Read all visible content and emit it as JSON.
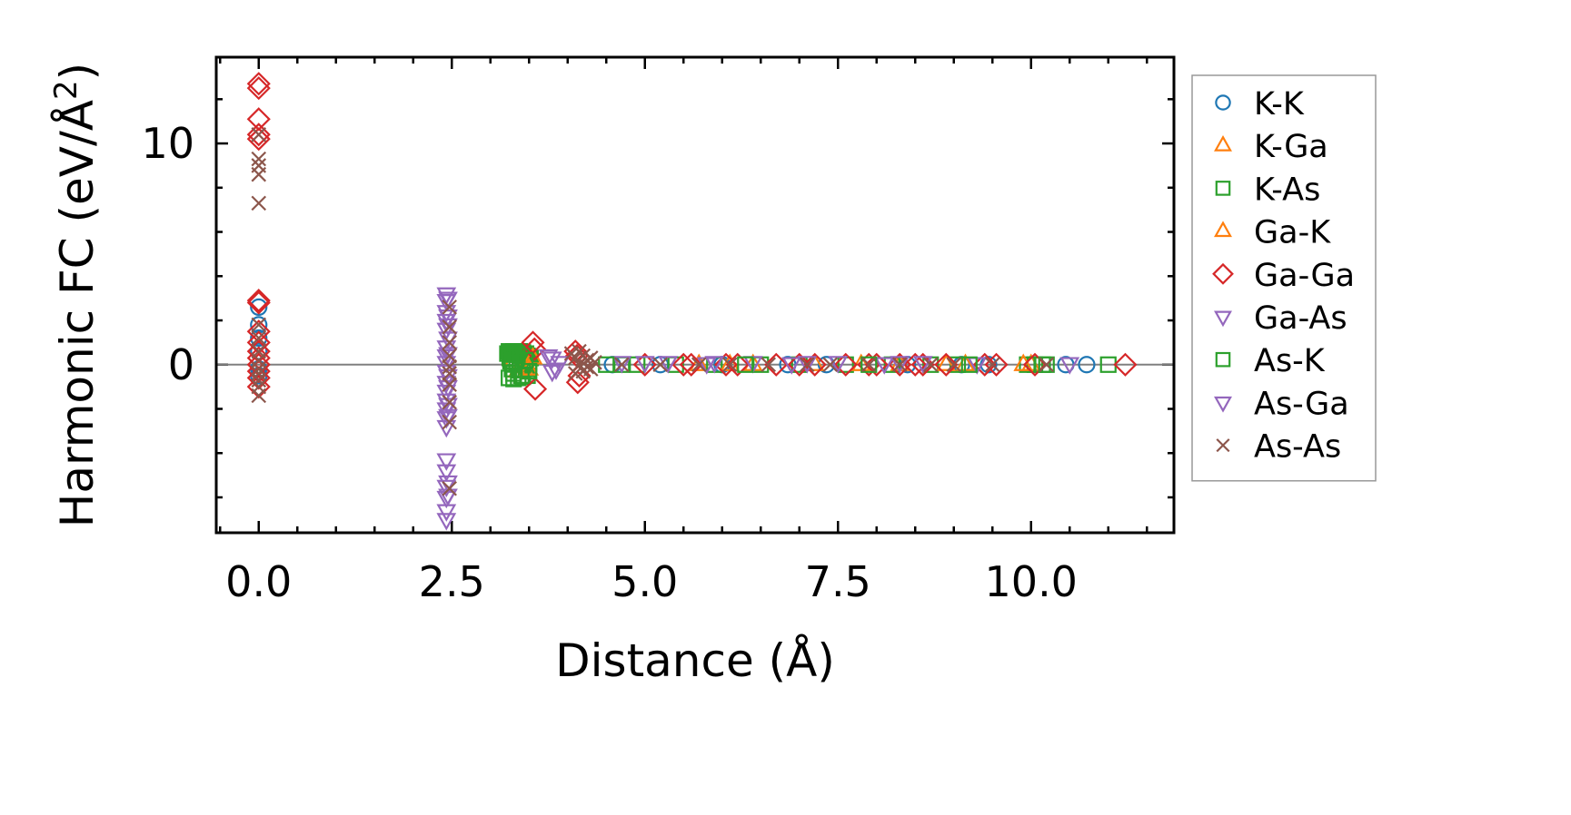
{
  "chart_data": {
    "type": "scatter",
    "xlabel": "Distance (Å)",
    "ylabel_main": "Harmonic FC (eV/Å",
    "ylabel_sup": "2",
    "ylabel_close": ")",
    "xlim": [
      -0.55,
      11.85
    ],
    "ylim": [
      -7.6,
      13.9
    ],
    "xticks": [
      0.0,
      2.5,
      5.0,
      7.5,
      10.0
    ],
    "xtick_labels": [
      "0.0",
      "2.5",
      "5.0",
      "7.5",
      "10.0"
    ],
    "yticks": [
      0,
      10
    ],
    "ytick_labels": [
      "0",
      "10"
    ],
    "x_minor_step": 0.5,
    "y_minor_step": 2,
    "zero_line": true,
    "grid": false,
    "legend_position": "outside-right",
    "series": [
      {
        "name": "K-K",
        "marker": "circle",
        "color": "#1f77b4",
        "x": [
          0.0,
          0.0,
          0.0,
          0.0,
          0.0,
          0.0,
          4.58,
          5.2,
          6.0,
          6.85,
          7.35,
          8.4,
          9.1,
          9.45,
          10.45,
          10.72
        ],
        "y": [
          2.6,
          1.8,
          1.2,
          0.6,
          -0.2,
          -0.5,
          0.0,
          0.0,
          0.0,
          0.0,
          0.0,
          0.0,
          0.0,
          0.0,
          0.0,
          0.0
        ]
      },
      {
        "name": "K-Ga",
        "marker": "triangle-up",
        "color": "#ff7f0e",
        "x": [
          3.3,
          3.35,
          3.4,
          3.45,
          5.7,
          6.4,
          7.2,
          8.3,
          9.15,
          10.0
        ],
        "y": [
          0.2,
          -0.3,
          0.4,
          -0.1,
          0.0,
          0.0,
          0.0,
          0.0,
          0.0,
          0.0
        ]
      },
      {
        "name": "K-As",
        "marker": "square",
        "color": "#2ca02c",
        "x": [
          3.22,
          3.24,
          3.26,
          3.28,
          3.3,
          3.32,
          3.34,
          3.36,
          3.38,
          3.4,
          3.42,
          3.44,
          3.46,
          3.48,
          3.5,
          3.52,
          3.24,
          3.3,
          3.36,
          3.42,
          3.48,
          3.26,
          3.34,
          3.42,
          3.5,
          3.28,
          3.38,
          3.46,
          4.7,
          4.9,
          5.4,
          5.9,
          6.5,
          7.0,
          7.6,
          8.2,
          8.7,
          9.05,
          9.95,
          10.05,
          10.15,
          11.0
        ],
        "y": [
          0.5,
          0.6,
          0.55,
          0.5,
          0.6,
          0.55,
          0.5,
          0.55,
          0.6,
          0.5,
          0.55,
          0.45,
          0.5,
          0.4,
          0.35,
          0.3,
          -0.6,
          -0.65,
          -0.6,
          -0.55,
          -0.5,
          0.15,
          0.1,
          0.1,
          0.05,
          -0.2,
          -0.25,
          -0.2,
          0.0,
          0.0,
          0.0,
          0.0,
          0.0,
          0.0,
          0.0,
          0.0,
          0.0,
          0.0,
          0.0,
          0.0,
          0.0,
          0.0
        ]
      },
      {
        "name": "Ga-K",
        "marker": "triangle-up",
        "color": "#ff7f0e",
        "x": [
          3.5,
          3.55,
          6.1,
          7.8,
          8.9,
          9.9
        ],
        "y": [
          -0.2,
          0.3,
          0.0,
          0.0,
          0.0,
          0.0
        ]
      },
      {
        "name": "Ga-Ga",
        "marker": "diamond",
        "color": "#d62728",
        "x": [
          0.0,
          0.0,
          0.0,
          0.0,
          0.0,
          0.0,
          0.0,
          0.0,
          0.0,
          0.0,
          0.0,
          0.0,
          0.0,
          0.0,
          0.0,
          3.55,
          3.57,
          3.58,
          4.1,
          4.12,
          4.15,
          4.13,
          5.0,
          5.5,
          5.6,
          6.05,
          6.2,
          6.7,
          7.0,
          7.2,
          7.6,
          7.9,
          8.0,
          8.3,
          8.5,
          8.6,
          8.9,
          9.4,
          9.55,
          10.05,
          11.22
        ],
        "y": [
          12.7,
          12.5,
          11.1,
          10.4,
          10.2,
          2.9,
          2.8,
          1.5,
          1.0,
          0.6,
          0.3,
          0.0,
          -0.3,
          -0.6,
          -1.0,
          1.0,
          0.7,
          -1.1,
          0.6,
          0.4,
          -0.5,
          -0.8,
          0.0,
          0.0,
          0.0,
          0.0,
          0.0,
          0.0,
          0.0,
          0.0,
          0.0,
          0.0,
          0.0,
          0.0,
          0.0,
          0.0,
          0.0,
          0.0,
          0.0,
          0.0,
          0.0
        ]
      },
      {
        "name": "Ga-As",
        "marker": "triangle-down",
        "color": "#9467bd",
        "x": [
          2.43,
          2.43,
          2.43,
          2.43,
          2.43,
          2.43,
          2.43,
          2.43,
          2.43,
          2.43,
          2.43,
          2.43,
          2.43,
          2.43,
          2.43,
          2.43,
          2.43,
          2.43,
          2.43,
          2.43,
          2.43,
          3.8,
          3.85,
          3.9,
          4.7,
          5.3,
          5.8,
          6.4,
          6.9,
          7.5,
          8.1,
          8.6,
          9.3
        ],
        "y": [
          3.2,
          2.9,
          2.4,
          2.0,
          1.6,
          0.8,
          0.4,
          0.1,
          -0.3,
          -0.8,
          -1.2,
          -1.6,
          -2.0,
          -2.4,
          -2.8,
          -4.3,
          -4.8,
          -5.5,
          -6.0,
          -6.6,
          -7.0,
          0.3,
          -0.2,
          0.1,
          0.1,
          0.1,
          0.05,
          0.1,
          0.05,
          0.1,
          0.05,
          0.1,
          0.05
        ]
      },
      {
        "name": "As-K",
        "marker": "square",
        "color": "#2ca02c",
        "x": [
          3.25,
          3.3,
          3.35,
          3.4,
          3.45,
          3.5,
          4.5,
          6.3,
          7.9,
          9.2,
          10.2
        ],
        "y": [
          0.3,
          -0.4,
          0.45,
          -0.5,
          0.2,
          -0.3,
          0.0,
          0.0,
          0.0,
          0.0,
          0.0
        ]
      },
      {
        "name": "As-Ga",
        "marker": "triangle-down",
        "color": "#9467bd",
        "x": [
          2.45,
          2.45,
          2.45,
          2.45,
          2.45,
          2.45,
          2.45,
          2.45,
          2.45,
          2.45,
          2.45,
          3.75,
          3.8,
          5.0,
          5.9,
          7.1,
          8.3,
          10.5
        ],
        "y": [
          3.0,
          2.2,
          1.8,
          1.2,
          0.5,
          -0.5,
          -1.0,
          -1.8,
          -2.3,
          -5.3,
          -5.9,
          0.4,
          -0.3,
          0.1,
          0.1,
          0.1,
          0.1,
          0.05
        ]
      },
      {
        "name": "As-As",
        "marker": "cross",
        "color": "#8c564b",
        "x": [
          0.0,
          0.0,
          0.0,
          0.0,
          0.0,
          0.0,
          0.0,
          0.0,
          0.0,
          0.0,
          0.0,
          0.0,
          0.0,
          0.0,
          2.47,
          2.47,
          2.47,
          2.47,
          2.47,
          2.47,
          2.47,
          2.47,
          2.47,
          2.47,
          4.05,
          4.1,
          4.15,
          4.2,
          4.25,
          4.3,
          4.35,
          4.1,
          4.2,
          4.3,
          4.15,
          4.25,
          4.7,
          5.2,
          5.7,
          6.1,
          6.6,
          7.1,
          7.4,
          7.9,
          8.3,
          8.7,
          9.0,
          9.5,
          10.2
        ],
        "y": [
          10.4,
          9.3,
          9.0,
          8.6,
          7.3,
          1.8,
          1.2,
          0.6,
          0.2,
          -0.2,
          -0.4,
          -0.7,
          -1.0,
          -1.4,
          2.6,
          1.7,
          1.0,
          0.4,
          -0.1,
          -0.4,
          -0.9,
          -1.7,
          -2.6,
          -5.6,
          0.5,
          0.3,
          0.6,
          0.4,
          0.2,
          0.3,
          0.1,
          -0.4,
          -0.3,
          -0.2,
          0.0,
          -0.1,
          0.0,
          0.0,
          0.0,
          0.0,
          0.0,
          0.0,
          0.0,
          0.0,
          0.0,
          0.0,
          0.0,
          0.0,
          0.0
        ]
      }
    ]
  }
}
